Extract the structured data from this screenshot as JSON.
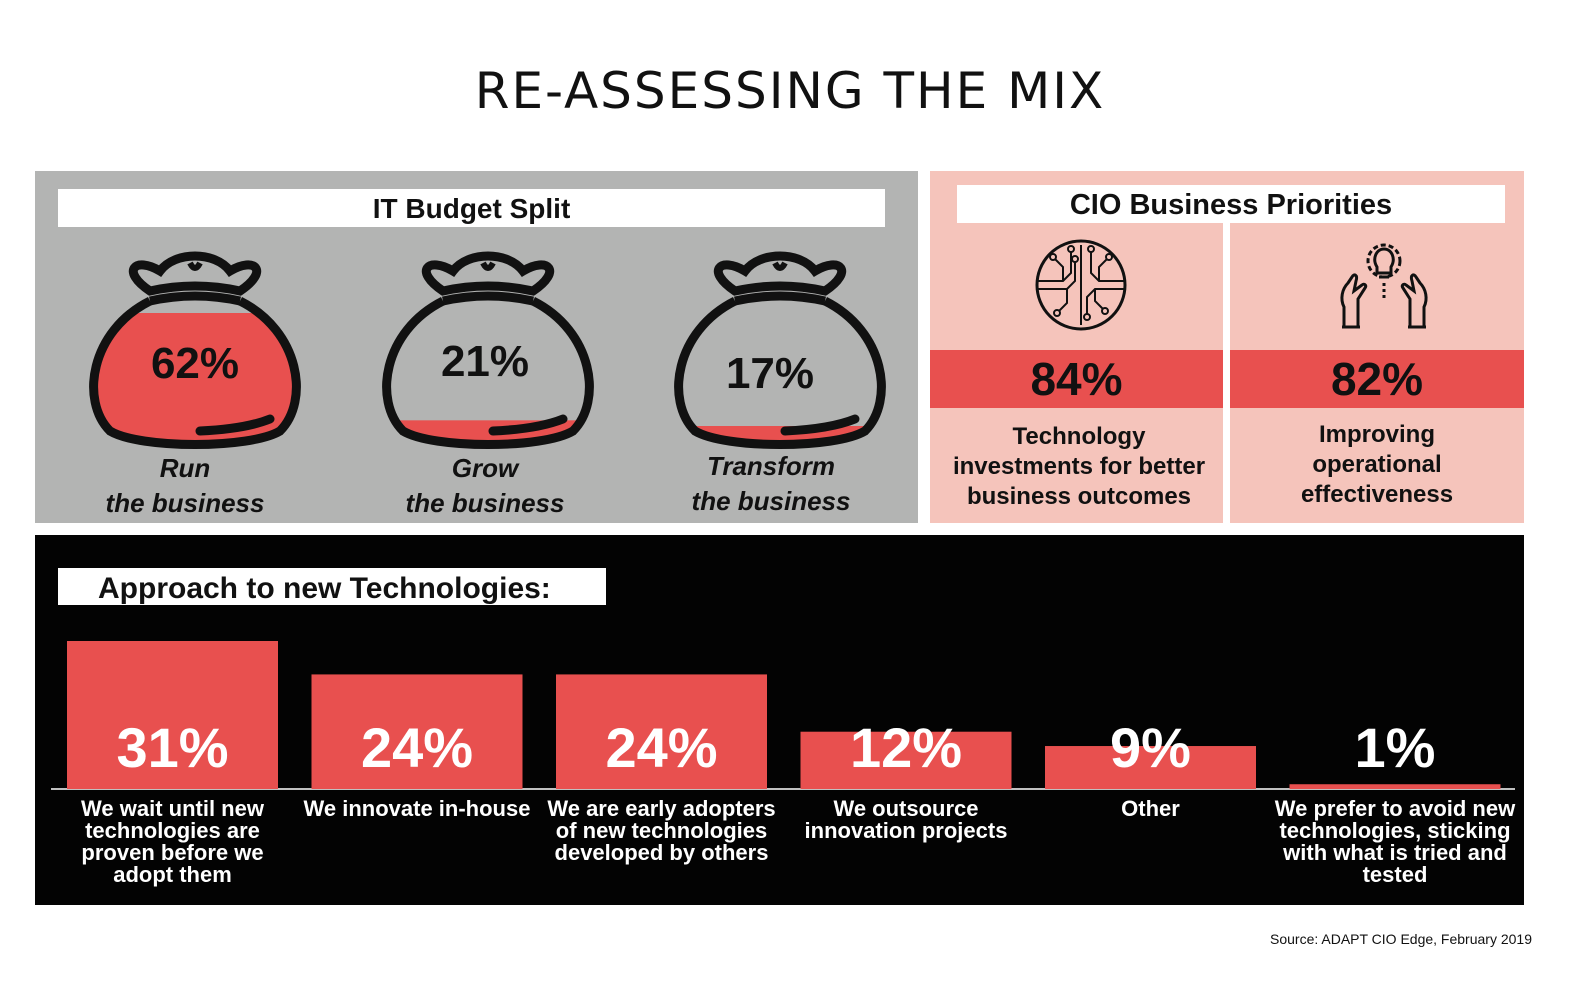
{
  "title": "RE-ASSESSING THE MIX",
  "colors": {
    "accent_red": "#e8504f",
    "panel_grey": "#b3b4b3",
    "panel_pink": "#f5c4bb",
    "panel_black": "#030303"
  },
  "budget": {
    "label": "IT Budget Split",
    "items": [
      {
        "pct": "62%",
        "value": 62,
        "caption_line1": "Run",
        "caption_line2": "the business"
      },
      {
        "pct": "21%",
        "value": 21,
        "caption_line1": "Grow",
        "caption_line2": "the business"
      },
      {
        "pct": "17%",
        "value": 17,
        "caption_line1": "Transform",
        "caption_line2": "the business"
      }
    ]
  },
  "priorities": {
    "label": "CIO Business Priorities",
    "items": [
      {
        "icon": "circuit-brain-icon",
        "pct": "84%",
        "value": 84,
        "text_lines": [
          "Technology",
          "investments for better",
          "business outcomes"
        ]
      },
      {
        "icon": "hands-lightbulb-gear-icon",
        "pct": "82%",
        "value": 82,
        "text_lines": [
          "Improving",
          "operational",
          "effectiveness"
        ]
      }
    ]
  },
  "approach": {
    "label": "Approach to new Technologies:"
  },
  "chart_data": {
    "type": "bar",
    "title": "Approach to new Technologies:",
    "categories": [
      "We wait until new technologies are proven before we adopt them",
      "We innovate in-house",
      "We are early adopters of new technologies developed by others",
      "We outsource innovation projects",
      "Other",
      "We prefer to avoid new technologies, sticking with what is tried and tested"
    ],
    "category_lines": [
      [
        "We wait until new",
        "technologies are",
        "proven before we",
        "adopt them"
      ],
      [
        "We innovate in-house"
      ],
      [
        "We are early adopters",
        "of new technologies",
        "developed by others"
      ],
      [
        "We outsource",
        "innovation projects"
      ],
      [
        "Other"
      ],
      [
        "We prefer to avoid new",
        "technologies, sticking",
        "with what is tried and",
        "tested"
      ]
    ],
    "values": [
      31,
      24,
      24,
      12,
      9,
      1
    ],
    "value_labels": [
      "31%",
      "24%",
      "24%",
      "12%",
      "9%",
      "1%"
    ],
    "ylim": [
      0,
      31
    ],
    "grid": false,
    "legend": "none"
  },
  "source": "Source: ADAPT CIO Edge, February 2019"
}
